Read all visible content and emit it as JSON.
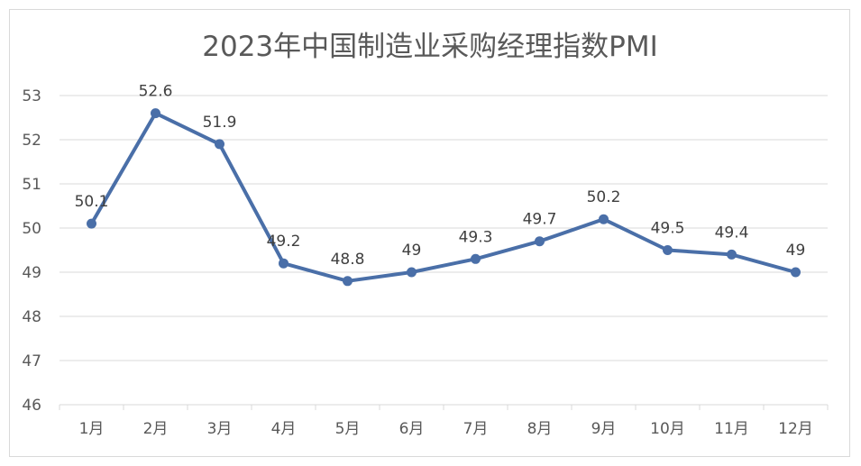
{
  "chart_data": {
    "type": "line",
    "title": "2023年中国制造业采购经理指数PMI",
    "categories": [
      "1月",
      "2月",
      "3月",
      "4月",
      "5月",
      "6月",
      "7月",
      "8月",
      "9月",
      "10月",
      "11月",
      "12月"
    ],
    "series": [
      {
        "values": [
          50.1,
          52.6,
          51.9,
          49.2,
          48.8,
          49,
          49.3,
          49.7,
          50.2,
          49.5,
          49.4,
          49
        ]
      }
    ],
    "data_labels": [
      "50.1",
      "52.6",
      "51.9",
      "49.2",
      "48.8",
      "49",
      "49.3",
      "49.7",
      "50.2",
      "49.5",
      "49.4",
      "49"
    ],
    "yticks": [
      "46",
      "47",
      "48",
      "49",
      "50",
      "51",
      "52",
      "53"
    ],
    "ylim": [
      46,
      53
    ],
    "grid": true,
    "legend": "none",
    "line_color": "#4a6fa8"
  }
}
